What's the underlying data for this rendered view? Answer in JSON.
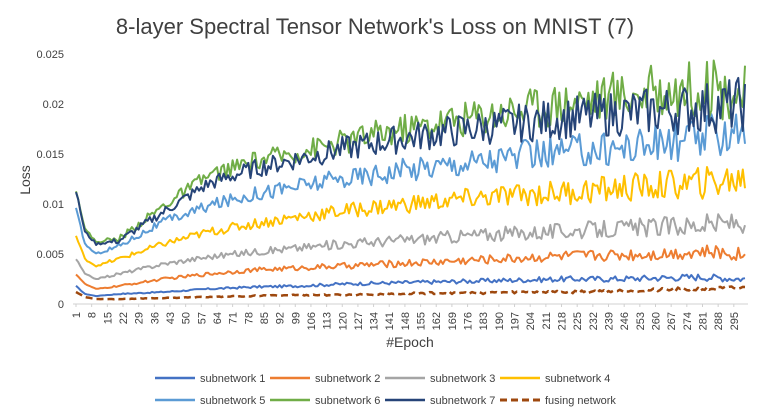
{
  "chart_data": {
    "type": "line",
    "title": "8-layer Spectral Tensor Network's Loss on MNIST    (7)",
    "xlabel": "#Epoch",
    "ylabel": "Loss",
    "ylim": [
      0,
      0.025
    ],
    "yticks": [
      "0",
      "0.005",
      "0.01",
      "0.015",
      "0.02",
      "0.025"
    ],
    "xtick_labels": [
      "1",
      "8",
      "15",
      "22",
      "29",
      "36",
      "43",
      "50",
      "57",
      "64",
      "71",
      "78",
      "85",
      "92",
      "99",
      "106",
      "113",
      "120",
      "127",
      "134",
      "141",
      "148",
      "155",
      "162",
      "169",
      "176",
      "183",
      "190",
      "197",
      "204",
      "211",
      "218",
      "225",
      "232",
      "239",
      "246",
      "253",
      "260",
      "267",
      "274",
      "281",
      "288",
      "295"
    ],
    "xtick_step": 7,
    "epochs": 300,
    "grid": false,
    "legend_position": "bottom",
    "series": [
      {
        "name": "subnetwork 1",
        "color": "#4472C4",
        "dash": false,
        "x": [
          1,
          5,
          10,
          20,
          40,
          60,
          80,
          100,
          120,
          140,
          160,
          180,
          200,
          220,
          240,
          260,
          280,
          300
        ],
        "values": [
          0.0018,
          0.001,
          0.0008,
          0.001,
          0.0012,
          0.0015,
          0.0017,
          0.0018,
          0.002,
          0.0021,
          0.0022,
          0.0023,
          0.0024,
          0.0025,
          0.0025,
          0.0026,
          0.0027,
          0.0025
        ]
      },
      {
        "name": "subnetwork 2",
        "color": "#ED7D31",
        "dash": false,
        "x": [
          1,
          5,
          10,
          20,
          40,
          60,
          80,
          100,
          120,
          140,
          160,
          180,
          200,
          220,
          240,
          260,
          280,
          300
        ],
        "values": [
          0.003,
          0.002,
          0.0015,
          0.0018,
          0.0025,
          0.003,
          0.0034,
          0.0036,
          0.0038,
          0.004,
          0.0042,
          0.0044,
          0.0046,
          0.0048,
          0.0049,
          0.005,
          0.0052,
          0.005
        ]
      },
      {
        "name": "subnetwork 3",
        "color": "#A5A5A5",
        "dash": false,
        "x": [
          1,
          5,
          10,
          20,
          40,
          60,
          80,
          100,
          120,
          140,
          160,
          180,
          200,
          220,
          240,
          260,
          280,
          300
        ],
        "values": [
          0.0045,
          0.003,
          0.0025,
          0.003,
          0.004,
          0.0047,
          0.0052,
          0.0056,
          0.006,
          0.0063,
          0.0066,
          0.0069,
          0.0071,
          0.0073,
          0.0075,
          0.0077,
          0.0079,
          0.0082
        ]
      },
      {
        "name": "subnetwork 4",
        "color": "#FFC000",
        "dash": false,
        "x": [
          1,
          5,
          10,
          20,
          40,
          60,
          80,
          100,
          120,
          140,
          160,
          180,
          200,
          220,
          240,
          260,
          280,
          300
        ],
        "values": [
          0.0068,
          0.0045,
          0.0038,
          0.0045,
          0.006,
          0.0072,
          0.008,
          0.0087,
          0.0093,
          0.0098,
          0.0102,
          0.0106,
          0.0109,
          0.0112,
          0.0115,
          0.0118,
          0.0121,
          0.0125
        ]
      },
      {
        "name": "subnetwork 5",
        "color": "#5B9BD5",
        "dash": false,
        "x": [
          1,
          5,
          10,
          20,
          40,
          60,
          80,
          100,
          120,
          140,
          160,
          180,
          200,
          220,
          240,
          260,
          280,
          300
        ],
        "values": [
          0.0095,
          0.006,
          0.005,
          0.0058,
          0.0082,
          0.0098,
          0.011,
          0.0118,
          0.0125,
          0.0132,
          0.0138,
          0.0143,
          0.0148,
          0.0152,
          0.0156,
          0.016,
          0.0165,
          0.018
        ]
      },
      {
        "name": "subnetwork 6",
        "color": "#70AD47",
        "dash": false,
        "x": [
          1,
          5,
          10,
          20,
          40,
          60,
          80,
          100,
          120,
          140,
          160,
          180,
          200,
          220,
          240,
          260,
          280,
          300
        ],
        "values": [
          0.0115,
          0.0075,
          0.0062,
          0.0065,
          0.0098,
          0.0128,
          0.0142,
          0.0152,
          0.0162,
          0.0172,
          0.018,
          0.0188,
          0.0195,
          0.0202,
          0.0208,
          0.0212,
          0.0217,
          0.021
        ]
      },
      {
        "name": "subnetwork 7",
        "color": "#264478",
        "dash": false,
        "x": [
          1,
          5,
          10,
          20,
          40,
          60,
          80,
          100,
          120,
          140,
          160,
          180,
          200,
          220,
          240,
          260,
          280,
          300
        ],
        "values": [
          0.0113,
          0.0072,
          0.006,
          0.0063,
          0.0092,
          0.012,
          0.0135,
          0.0145,
          0.0155,
          0.0163,
          0.017,
          0.0176,
          0.0181,
          0.0186,
          0.019,
          0.0193,
          0.0196,
          0.02
        ]
      },
      {
        "name": "fusing network",
        "color": "#9E480E",
        "dash": true,
        "x": [
          1,
          5,
          10,
          20,
          40,
          60,
          80,
          100,
          120,
          140,
          160,
          180,
          200,
          220,
          240,
          260,
          280,
          300
        ],
        "values": [
          0.0012,
          0.0007,
          0.0005,
          0.0005,
          0.0006,
          0.0007,
          0.0008,
          0.0009,
          0.0009,
          0.001,
          0.0011,
          0.0011,
          0.0012,
          0.0012,
          0.0013,
          0.0014,
          0.0015,
          0.0016
        ]
      }
    ]
  }
}
